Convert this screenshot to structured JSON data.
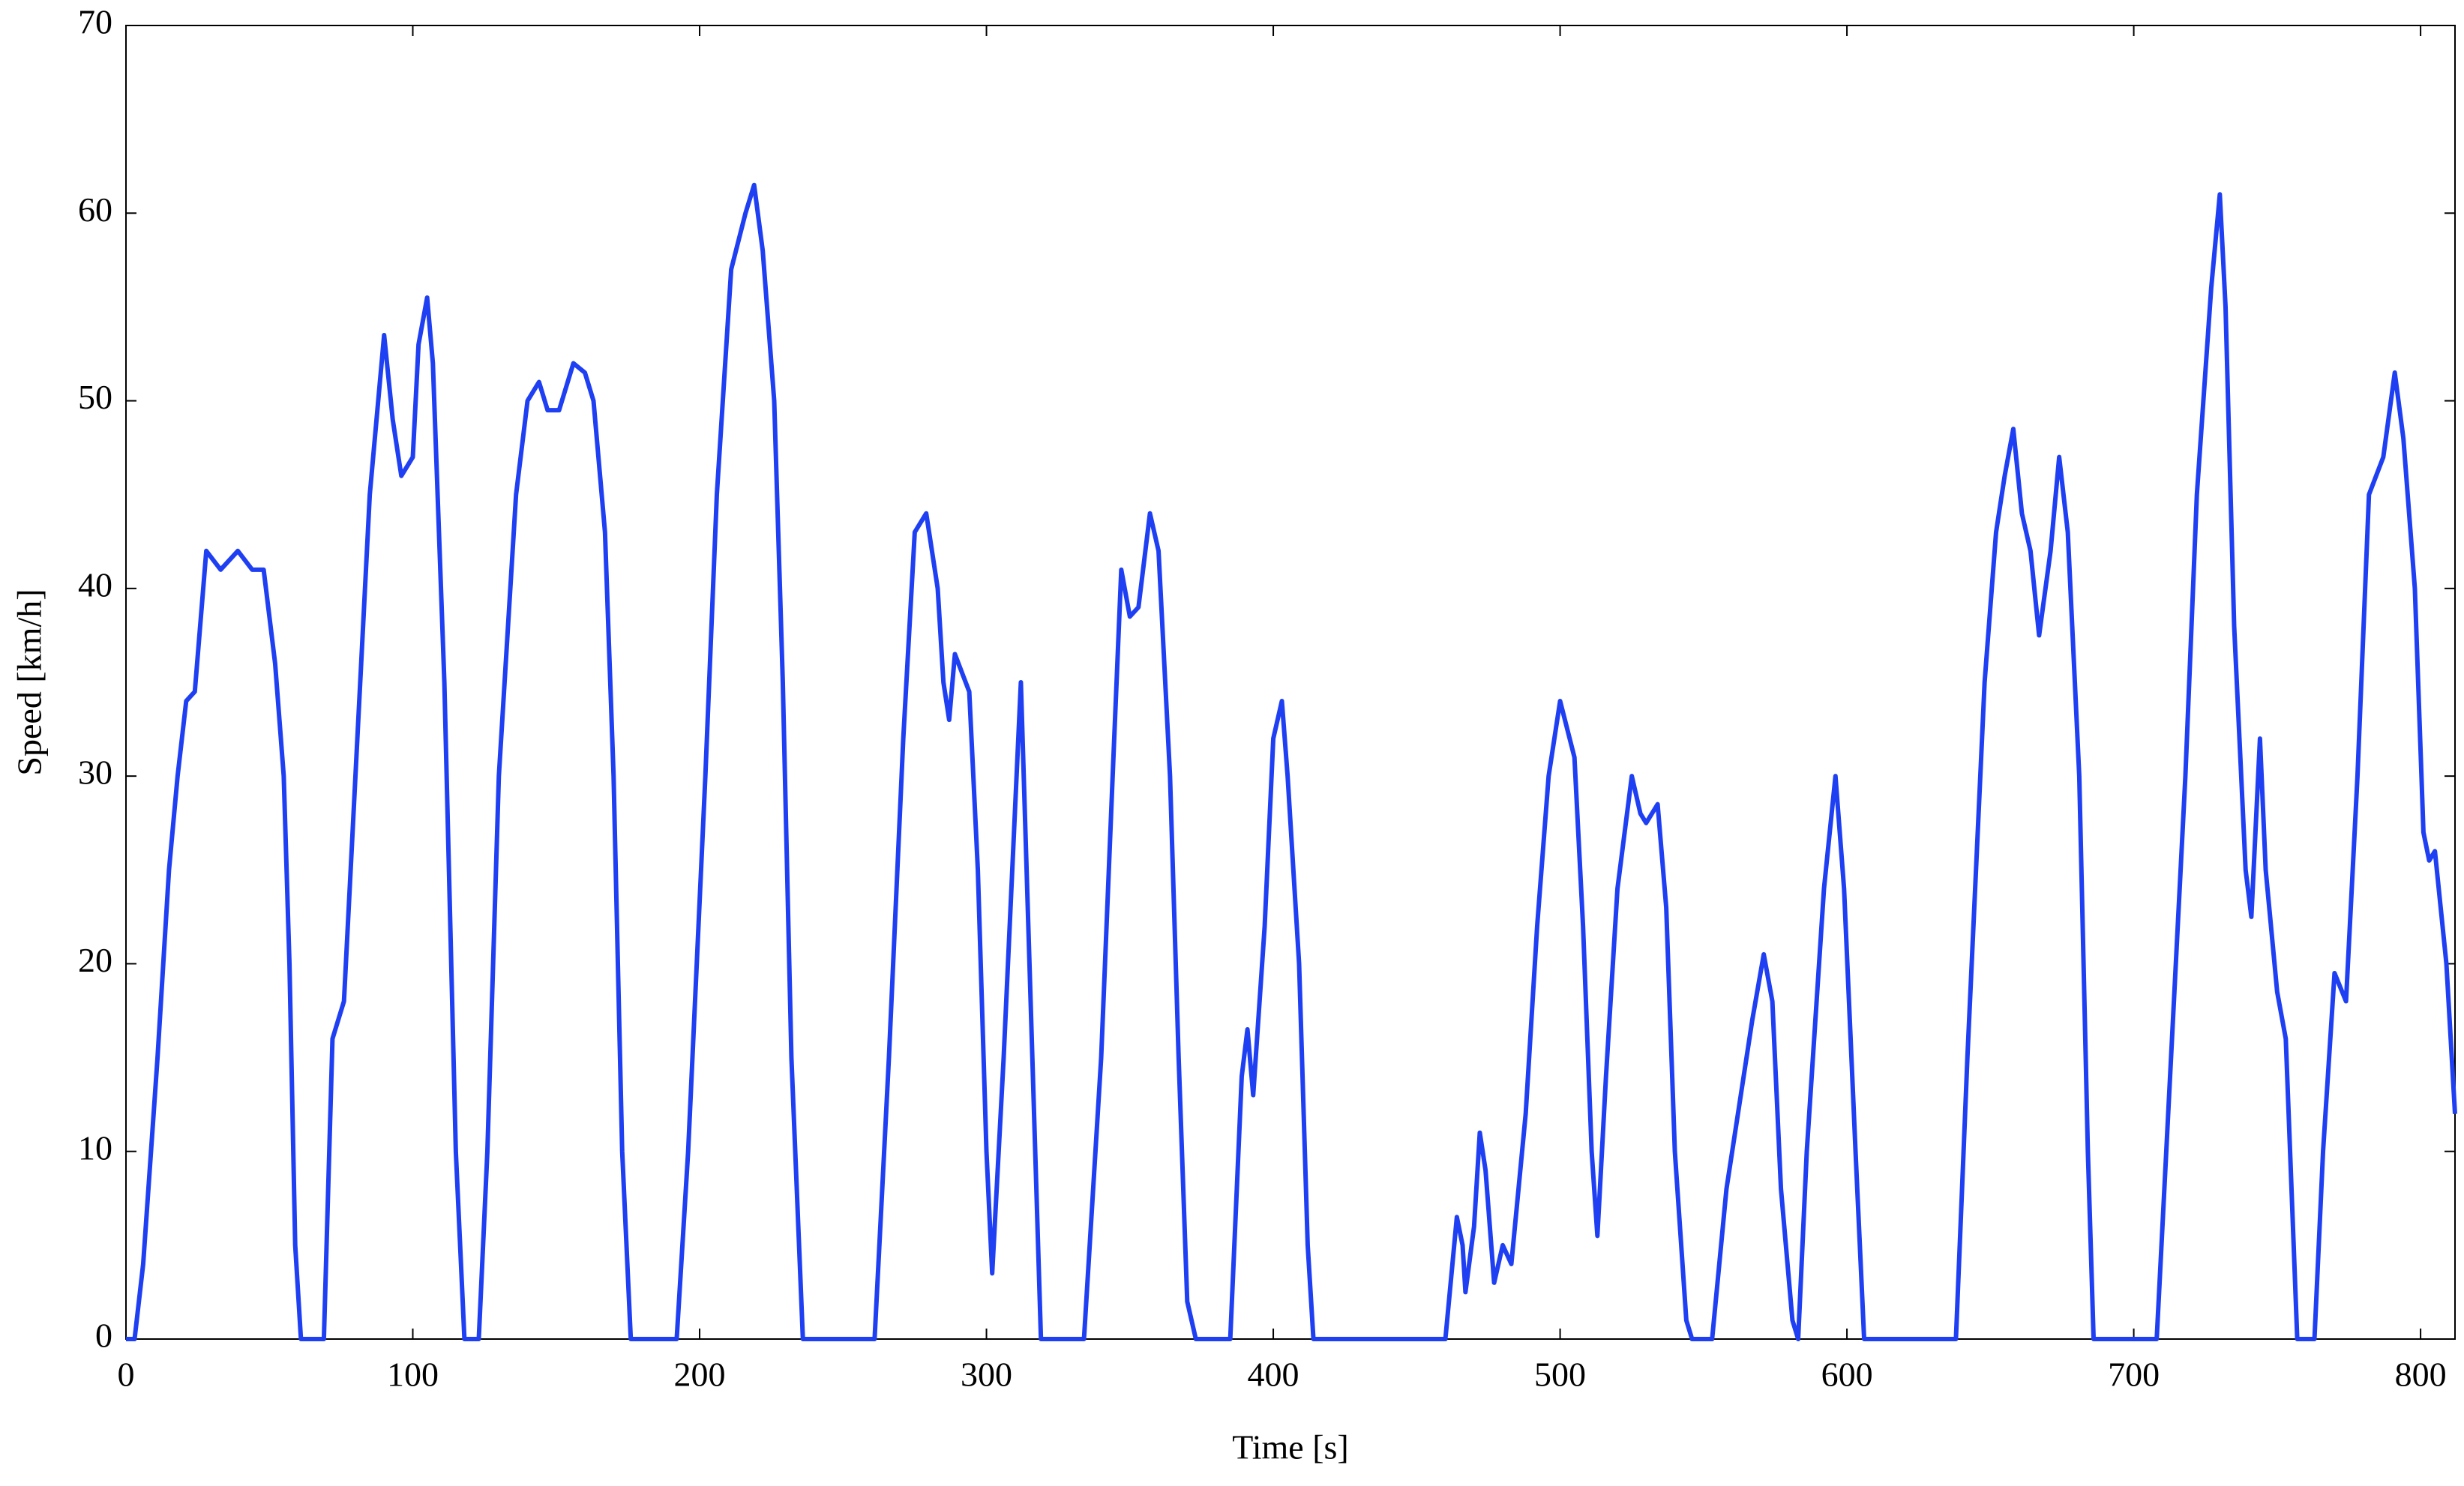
{
  "chart_data": {
    "type": "line",
    "x_label": "Time [s]",
    "y_label": "Speed [km/h]",
    "xlim": [
      0,
      812
    ],
    "ylim": [
      0,
      70
    ],
    "xticks": [
      0,
      100,
      200,
      300,
      400,
      500,
      600,
      700,
      800
    ],
    "yticks": [
      0,
      10,
      20,
      30,
      40,
      50,
      60,
      70
    ],
    "grid": false,
    "series": [
      {
        "color": "#1f3ff2",
        "x": [
          0,
          3,
          6,
          11,
          15,
          18,
          21,
          24,
          28,
          33,
          39,
          44,
          48,
          52,
          55,
          57,
          59,
          61,
          69,
          72,
          76,
          80,
          85,
          90,
          93,
          96,
          100,
          102,
          105,
          107,
          111,
          115,
          118,
          123,
          126,
          130,
          136,
          140,
          144,
          147,
          151,
          156,
          160,
          163,
          167,
          170,
          173,
          176,
          192,
          196,
          202,
          206,
          211,
          216,
          219,
          222,
          226,
          229,
          232,
          236,
          261,
          266,
          271,
          275,
          279,
          283,
          285,
          287,
          289,
          294,
          297,
          300,
          302,
          306,
          309,
          312,
          314,
          317,
          319,
          334,
          340,
          344,
          347,
          350,
          353,
          357,
          360,
          364,
          367,
          370,
          373,
          385,
          389,
          391,
          393,
          397,
          400,
          403,
          405,
          409,
          412,
          414,
          460,
          464,
          466,
          467,
          470,
          472,
          474,
          477,
          480,
          483,
          488,
          492,
          496,
          500,
          505,
          508,
          511,
          513,
          516,
          520,
          525,
          528,
          530,
          534,
          537,
          540,
          544,
          546,
          553,
          558,
          562,
          567,
          571,
          574,
          577,
          581,
          583,
          586,
          592,
          596,
          599,
          603,
          606,
          638,
          642,
          648,
          652,
          655,
          658,
          661,
          664,
          667,
          671,
          674,
          677,
          681,
          684,
          686,
          708,
          712,
          718,
          722,
          727,
          730,
          732,
          735,
          739,
          741,
          744,
          746,
          750,
          753,
          755,
          757,
          763,
          766,
          770,
          774,
          778,
          782,
          787,
          791,
          794,
          798,
          801,
          803,
          805,
          809,
          812
        ],
        "values": [
          0,
          0,
          4,
          15,
          25,
          30,
          34,
          34.5,
          42,
          41,
          42,
          41,
          41,
          36,
          30,
          20,
          5,
          0,
          0,
          16,
          18,
          30,
          45,
          53.5,
          49,
          46,
          47,
          53,
          55.5,
          52,
          35,
          10,
          0,
          0,
          10,
          30,
          45,
          50,
          51,
          49.5,
          49.5,
          52,
          51.5,
          50,
          43,
          30,
          10,
          0,
          0,
          10,
          30,
          45,
          57,
          60,
          61.5,
          58,
          50,
          35,
          15,
          0,
          0,
          15,
          32,
          43,
          44,
          40,
          35,
          33,
          36.5,
          34.5,
          25,
          10,
          3.5,
          15,
          25,
          35,
          25,
          10,
          0,
          0,
          15,
          30,
          41,
          38.5,
          39,
          44,
          42,
          30,
          15,
          2,
          0,
          0,
          14,
          16.5,
          13,
          22,
          32,
          34,
          30,
          20,
          5,
          0,
          0,
          6.5,
          5,
          2.5,
          6,
          11,
          9,
          3,
          5,
          4,
          12,
          22,
          30,
          34,
          31,
          22,
          10,
          5.5,
          14,
          24,
          30,
          28,
          27.5,
          28.5,
          23,
          10,
          1,
          0,
          0,
          8,
          12,
          17,
          20.5,
          18,
          8,
          1,
          0,
          10,
          24,
          30,
          24,
          10,
          0,
          0,
          15,
          35,
          43,
          46,
          48.5,
          44,
          42,
          37.5,
          42,
          47,
          43,
          30,
          10,
          0,
          0,
          12,
          30,
          45,
          56,
          61,
          55,
          38,
          25,
          22.5,
          32,
          25,
          18.5,
          16,
          8,
          0,
          0,
          10,
          19.5,
          18,
          30,
          45,
          47,
          51.5,
          48,
          40,
          27,
          25.5,
          26,
          20,
          12
        ]
      }
    ]
  }
}
